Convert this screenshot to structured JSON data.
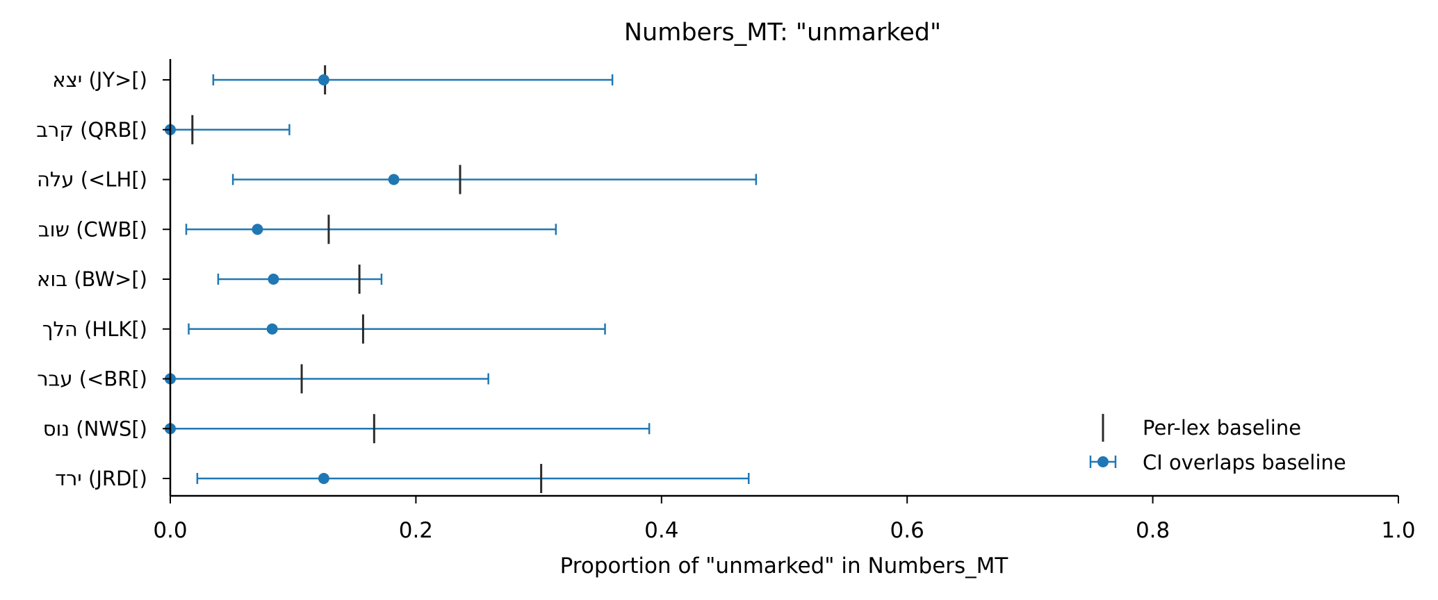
{
  "chart_data": {
    "type": "errorbar",
    "title": "Numbers_MT: \"unmarked\"",
    "xlabel": "Proportion of \"unmarked\" in Numbers_MT",
    "ylabel": "",
    "xlim": [
      0.0,
      1.0
    ],
    "xticks": [
      "0.0",
      "0.2",
      "0.4",
      "0.6",
      "0.8",
      "1.0"
    ],
    "grid": false,
    "legend_position": "lower-right",
    "legend": [
      {
        "label": "Per-lex baseline",
        "marker": "vertical-line"
      },
      {
        "label": "CI overlaps baseline",
        "marker": "dot-with-errorbar"
      }
    ],
    "colors": {
      "ci": "#1f77b4",
      "baseline": "#2b2b2b",
      "axis": "#000000"
    },
    "categories": [
      "יצא (JY>[)",
      "קרב (QRB[)",
      "עלה (<LH[)",
      "שוב (CWB[)",
      "בוא (BW>[)",
      "הלך (HLK[)",
      "עבר (<BR[)",
      "נוס (NWS[)",
      "ירד (JRD[)"
    ],
    "series": [
      {
        "name": "CI overlaps baseline",
        "points": [
          {
            "value": 0.125,
            "ci_low": 0.035,
            "ci_high": 0.36
          },
          {
            "value": 0.0,
            "ci_low": 0.0,
            "ci_high": 0.097
          },
          {
            "value": 0.182,
            "ci_low": 0.051,
            "ci_high": 0.477
          },
          {
            "value": 0.071,
            "ci_low": 0.013,
            "ci_high": 0.314
          },
          {
            "value": 0.084,
            "ci_low": 0.039,
            "ci_high": 0.172
          },
          {
            "value": 0.083,
            "ci_low": 0.015,
            "ci_high": 0.354
          },
          {
            "value": 0.0,
            "ci_low": 0.0,
            "ci_high": 0.259
          },
          {
            "value": 0.0,
            "ci_low": 0.0,
            "ci_high": 0.39
          },
          {
            "value": 0.125,
            "ci_low": 0.022,
            "ci_high": 0.471
          }
        ]
      },
      {
        "name": "Per-lex baseline",
        "values": [
          0.126,
          0.018,
          0.236,
          0.129,
          0.154,
          0.157,
          0.107,
          0.166,
          0.302
        ]
      }
    ]
  }
}
